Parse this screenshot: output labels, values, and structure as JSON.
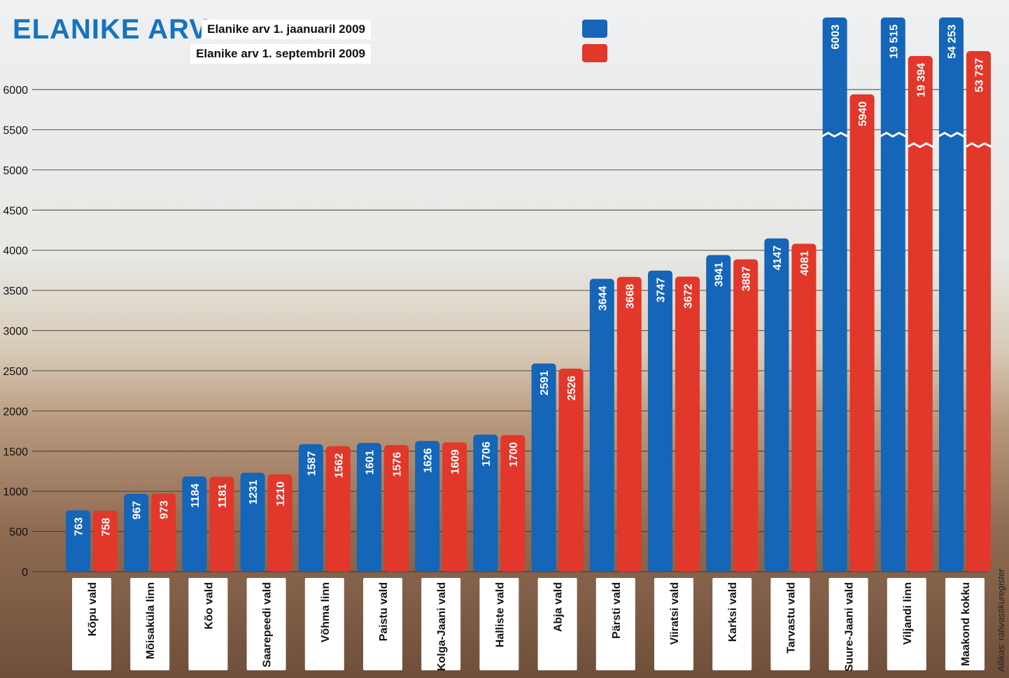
{
  "title": "ELANIKE ARV",
  "source": "Allikas: rahvastikuregister",
  "colors": {
    "series_jan": "#1565b8",
    "series_sep": "#e2372b",
    "title": "#1673bf"
  },
  "legend": [
    {
      "label": "Elanike arv 1. jaanuaril 2009",
      "color": "#1565b8"
    },
    {
      "label": "Elanike arv 1. septembril 2009",
      "color": "#e2372b"
    }
  ],
  "chart_data": {
    "type": "bar",
    "title": "ELANIKE ARV",
    "ylim": [
      0,
      6000
    ],
    "yticks": [
      0,
      500,
      1000,
      1500,
      2000,
      2500,
      3000,
      3500,
      4000,
      4500,
      5000,
      5500,
      6000
    ],
    "grid": true,
    "axis_break": "bars above 6000 are shown with a break",
    "categories": [
      "Kõpu vald",
      "Mõisaküla linn",
      "Kõo vald",
      "Saarepeedi vald",
      "Võhma linn",
      "Paistu vald",
      "Kolga-Jaani vald",
      "Halliste vald",
      "Abja vald",
      "Pärsti vald",
      "Viiratsi vald",
      "Karksi vald",
      "Tarvastu vald",
      "Suure-Jaani vald",
      "Viljandi linn",
      "Maakond kokku"
    ],
    "series": [
      {
        "name": "Elanike arv 1. jaanuaril 2009",
        "values": [
          763,
          967,
          1184,
          1231,
          1587,
          1601,
          1626,
          1706,
          2591,
          3644,
          3747,
          3941,
          4147,
          6003,
          19515,
          54253
        ],
        "labels": [
          "763",
          "967",
          "1184",
          "1231",
          "1587",
          "1601",
          "1626",
          "1706",
          "2591",
          "3644",
          "3747",
          "3941",
          "4147",
          "6003",
          "19 515",
          "54 253"
        ]
      },
      {
        "name": "Elanike arv 1. septembril 2009",
        "values": [
          758,
          973,
          1181,
          1210,
          1562,
          1576,
          1609,
          1700,
          2526,
          3668,
          3672,
          3887,
          4081,
          5940,
          19394,
          53737
        ],
        "labels": [
          "758",
          "973",
          "1181",
          "1210",
          "1562",
          "1576",
          "1609",
          "1700",
          "2526",
          "3668",
          "3672",
          "3887",
          "4081",
          "5940",
          "19 394",
          "53 737"
        ]
      }
    ]
  }
}
